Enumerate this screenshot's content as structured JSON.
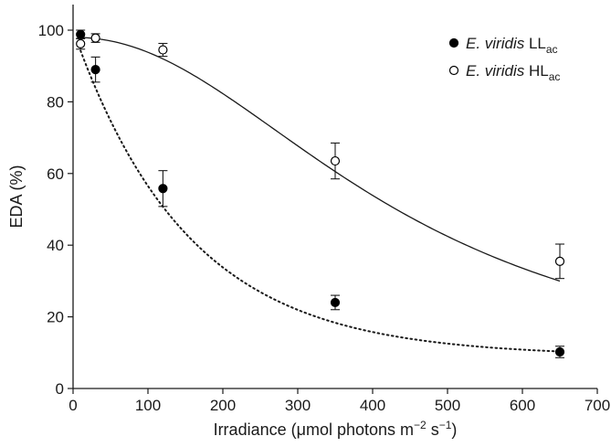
{
  "chart_data": {
    "type": "scatter",
    "xlabel": "Irradiance (μmol photons m",
    "xlabel_sup1": "−2",
    "xlabel_mid": " s",
    "xlabel_sup2": "−1",
    "xlabel_end": ")",
    "ylabel": "EDA (%)",
    "xlim": [
      0,
      700
    ],
    "ylim": [
      0,
      105
    ],
    "x_ticks": [
      0,
      100,
      200,
      300,
      400,
      500,
      600,
      700
    ],
    "y_ticks": [
      0,
      20,
      40,
      60,
      80,
      100
    ],
    "grid": false,
    "legend_position": "top-right",
    "series": [
      {
        "name": "E. viridis LL",
        "name_italic": "E. viridis",
        "name_rest": " LL",
        "name_sub": "ac",
        "marker": "filled-circle",
        "color": "#000000",
        "fit_line": "dotted",
        "x": [
          10,
          30,
          120,
          350,
          650
        ],
        "y": [
          98.8,
          89.0,
          55.8,
          24.0,
          10.2
        ],
        "err": [
          1.2,
          3.5,
          5.0,
          2.0,
          1.6
        ],
        "fit": {
          "y0": 100,
          "a": 91,
          "b": 0.0065
        }
      },
      {
        "name": "E. viridis HL",
        "name_italic": "E. viridis",
        "name_rest": " HL",
        "name_sub": "ac",
        "marker": "open-circle",
        "color": "#000000",
        "fit_line": "solid",
        "x": [
          10,
          30,
          120,
          350,
          650
        ],
        "y": [
          96.2,
          97.8,
          94.5,
          63.5,
          35.5
        ],
        "err": [
          1.5,
          1.2,
          1.8,
          5.0,
          4.8
        ],
        "fit": {
          "top": 98,
          "c50": 440,
          "n": 2.1
        }
      }
    ]
  }
}
